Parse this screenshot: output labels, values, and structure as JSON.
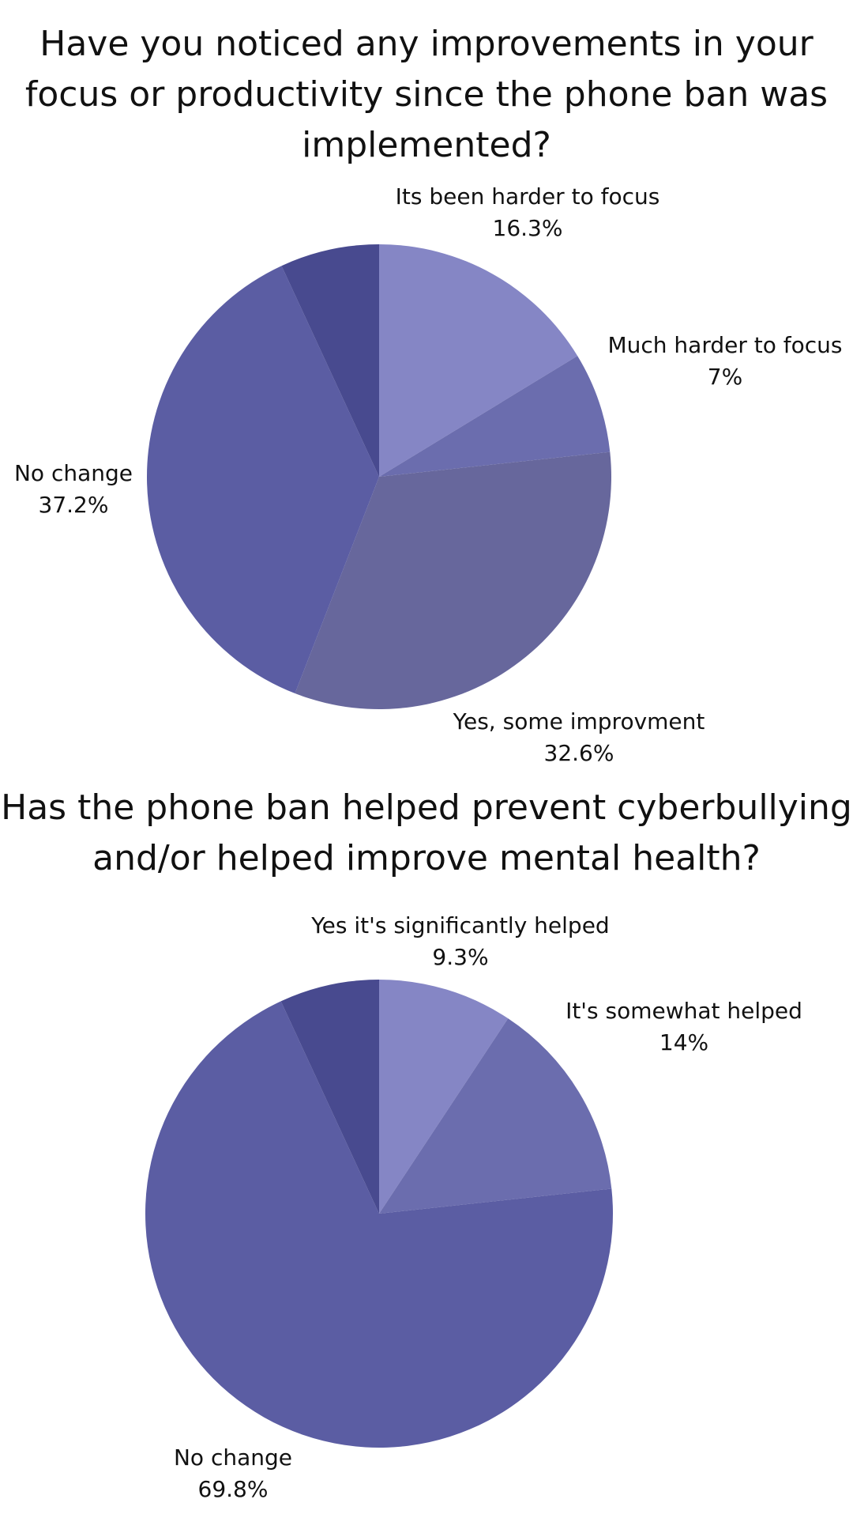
{
  "chart_data": [
    {
      "type": "pie",
      "title": "Have you noticed any improvements in your focus or productivity since the phone ban was implemented?",
      "slices": [
        {
          "label": "Its been harder to focus",
          "value": 16.3,
          "value_label": "16.3%",
          "color": "#8586C5"
        },
        {
          "label": "Much harder to focus",
          "value": 7,
          "value_label": "7%",
          "color": "#6B6DAE"
        },
        {
          "label": "Yes, some improvment",
          "value": 32.6,
          "value_label": "32.6%",
          "color": "#67679C"
        },
        {
          "label": "No change",
          "value": 37.2,
          "value_label": "37.2%",
          "color": "#5B5DA3"
        },
        {
          "label": "",
          "value": 6.9,
          "value_label": "",
          "color": "#484A8F"
        }
      ]
    },
    {
      "type": "pie",
      "title": "Has the phone ban helped prevent cyberbullying and/or helped improve mental health?",
      "slices": [
        {
          "label": "Yes it's significantly helped",
          "value": 9.3,
          "value_label": "9.3%",
          "color": "#8586C5"
        },
        {
          "label": "It's somewhat helped",
          "value": 14,
          "value_label": "14%",
          "color": "#6B6DAE"
        },
        {
          "label": "No change",
          "value": 69.8,
          "value_label": "69.8%",
          "color": "#5B5DA3"
        },
        {
          "label": "",
          "value": 6.9,
          "value_label": "",
          "color": "#484A8F"
        }
      ]
    }
  ]
}
